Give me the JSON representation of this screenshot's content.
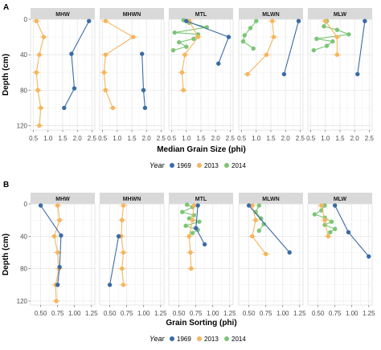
{
  "colors": {
    "1969": "#3b6ba5",
    "2013": "#f3b65e",
    "2014": "#7cc576"
  },
  "chart_data": [
    {
      "type": "scatter",
      "tag": "A",
      "xlabel": "Median Grain Size (phi)",
      "ylabel": "Depth (cm)",
      "xlim": [
        0.4,
        2.6
      ],
      "ylim": [
        0,
        125
      ],
      "xticks": [
        0.5,
        1.0,
        1.5,
        2.0,
        2.5
      ],
      "xtick_labels": [
        "0.5",
        "1.0",
        "1.5",
        "2.0",
        "2.5"
      ],
      "yticks": [
        0,
        40,
        80,
        120
      ],
      "ytick_labels": [
        "0",
        "40",
        "80",
        "120"
      ],
      "y_reversed": true,
      "legend": {
        "title": "Year",
        "position": "bottom",
        "entries": [
          "1969",
          "2013",
          "2014"
        ]
      },
      "facets": [
        {
          "label": "MHW",
          "series": [
            {
              "name": "1969",
              "points": [
                [
                  2.4,
                  2
                ],
                [
                  1.8,
                  39
                ],
                [
                  1.9,
                  78
                ],
                [
                  1.55,
                  100
                ]
              ]
            },
            {
              "name": "2013",
              "points": [
                [
                  0.6,
                  2
                ],
                [
                  0.85,
                  20
                ],
                [
                  0.7,
                  40
                ],
                [
                  0.6,
                  60
                ],
                [
                  0.65,
                  80
                ],
                [
                  0.75,
                  100
                ],
                [
                  0.7,
                  120
                ]
              ]
            }
          ]
        },
        {
          "label": "MHWN",
          "series": [
            {
              "name": "1969",
              "points": [
                [
                  1.85,
                  39
                ],
                [
                  1.9,
                  80
                ],
                [
                  1.95,
                  100
                ]
              ]
            },
            {
              "name": "2013",
              "points": [
                [
                  0.6,
                  2
                ],
                [
                  1.55,
                  20
                ],
                [
                  0.6,
                  40
                ],
                [
                  0.55,
                  60
                ],
                [
                  0.6,
                  80
                ],
                [
                  0.85,
                  100
                ]
              ]
            }
          ]
        },
        {
          "label": "MTL",
          "series": [
            {
              "name": "1969",
              "points": [
                [
                  1.0,
                  2
                ],
                [
                  2.45,
                  20
                ],
                [
                  2.1,
                  50
                ]
              ]
            },
            {
              "name": "2013",
              "points": [
                [
                  1.1,
                  2
                ],
                [
                  1.4,
                  20
                ],
                [
                  0.95,
                  40
                ],
                [
                  0.85,
                  60
                ],
                [
                  0.9,
                  80
                ]
              ]
            },
            {
              "name": "2014",
              "points": [
                [
                  0.9,
                  1
                ],
                [
                  1.1,
                  4
                ],
                [
                  1.7,
                  9
                ],
                [
                  0.6,
                  15
                ],
                [
                  1.4,
                  17
                ],
                [
                  1.25,
                  22
                ],
                [
                  0.75,
                  26
                ],
                [
                  1.0,
                  31
                ],
                [
                  0.55,
                  35
                ]
              ]
            }
          ]
        },
        {
          "label": "MLWN",
          "series": [
            {
              "name": "1969",
              "points": [
                [
                  2.45,
                  2
                ],
                [
                  1.95,
                  62
                ]
              ]
            },
            {
              "name": "2013",
              "points": [
                [
                  1.55,
                  2
                ],
                [
                  1.6,
                  20
                ],
                [
                  1.35,
                  40
                ],
                [
                  0.7,
                  62
                ]
              ]
            },
            {
              "name": "2014",
              "points": [
                [
                  1.0,
                  2
                ],
                [
                  0.8,
                  10
                ],
                [
                  0.6,
                  18
                ],
                [
                  0.55,
                  25
                ],
                [
                  0.9,
                  33
                ]
              ]
            }
          ]
        },
        {
          "label": "MLW",
          "series": [
            {
              "name": "1969",
              "points": [
                [
                  2.35,
                  2
                ],
                [
                  2.1,
                  62
                ]
              ]
            },
            {
              "name": "2013",
              "points": [
                [
                  1.0,
                  2
                ],
                [
                  1.4,
                  20
                ],
                [
                  1.4,
                  40
                ]
              ]
            },
            {
              "name": "2014",
              "points": [
                [
                  1.05,
                  2
                ],
                [
                  0.95,
                  8
                ],
                [
                  1.4,
                  12
                ],
                [
                  1.8,
                  17
                ],
                [
                  0.7,
                  22
                ],
                [
                  1.25,
                  25
                ],
                [
                  1.05,
                  30
                ],
                [
                  0.6,
                  35
                ]
              ]
            }
          ]
        }
      ]
    },
    {
      "type": "scatter",
      "tag": "B",
      "xlabel": "Grain Sorting (phi)",
      "ylabel": "Depth (cm)",
      "xlim": [
        0.35,
        1.3
      ],
      "ylim": [
        0,
        125
      ],
      "xticks": [
        0.5,
        0.75,
        1.0,
        1.25
      ],
      "xtick_labels": [
        "0.50",
        "0.75",
        "1.00",
        "1.25"
      ],
      "yticks": [
        0,
        40,
        80,
        120
      ],
      "ytick_labels": [
        "0",
        "40",
        "80",
        "120"
      ],
      "y_reversed": true,
      "legend": {
        "title": "Year",
        "position": "bottom",
        "entries": [
          "1969",
          "2013",
          "2014"
        ]
      },
      "facets": [
        {
          "label": "MHW",
          "series": [
            {
              "name": "1969",
              "points": [
                [
                  0.5,
                  2
                ],
                [
                  0.8,
                  39
                ],
                [
                  0.78,
                  78
                ],
                [
                  0.75,
                  100
                ]
              ]
            },
            {
              "name": "2013",
              "points": [
                [
                  0.75,
                  2
                ],
                [
                  0.78,
                  20
                ],
                [
                  0.7,
                  40
                ],
                [
                  0.75,
                  60
                ],
                [
                  0.77,
                  80
                ],
                [
                  0.72,
                  100
                ],
                [
                  0.73,
                  120
                ]
              ]
            }
          ]
        },
        {
          "label": "MHWN",
          "series": [
            {
              "name": "1969",
              "points": [
                [
                  0.63,
                  40
                ],
                [
                  0.5,
                  100
                ]
              ]
            },
            {
              "name": "2013",
              "points": [
                [
                  0.7,
                  2
                ],
                [
                  0.68,
                  20
                ],
                [
                  0.67,
                  40
                ],
                [
                  0.7,
                  60
                ],
                [
                  0.68,
                  80
                ],
                [
                  0.7,
                  100
                ]
              ]
            }
          ]
        },
        {
          "label": "MTL",
          "series": [
            {
              "name": "1969",
              "points": [
                [
                  0.78,
                  2
                ],
                [
                  0.75,
                  30
                ],
                [
                  0.88,
                  50
                ]
              ]
            },
            {
              "name": "2013",
              "points": [
                [
                  0.72,
                  2
                ],
                [
                  0.7,
                  20
                ],
                [
                  0.65,
                  40
                ],
                [
                  0.67,
                  60
                ],
                [
                  0.68,
                  80
                ]
              ]
            },
            {
              "name": "2014",
              "points": [
                [
                  0.62,
                  1
                ],
                [
                  0.7,
                  4
                ],
                [
                  0.55,
                  10
                ],
                [
                  0.72,
                  14
                ],
                [
                  0.65,
                  18
                ],
                [
                  0.8,
                  22
                ],
                [
                  0.6,
                  27
                ],
                [
                  0.78,
                  32
                ],
                [
                  0.7,
                  36
                ]
              ]
            }
          ]
        },
        {
          "label": "MLWN",
          "series": [
            {
              "name": "1969",
              "points": [
                [
                  0.5,
                  2
                ],
                [
                  1.1,
                  60
                ]
              ]
            },
            {
              "name": "2013",
              "points": [
                [
                  0.55,
                  2
                ],
                [
                  0.6,
                  20
                ],
                [
                  0.55,
                  40
                ],
                [
                  0.75,
                  62
                ]
              ]
            },
            {
              "name": "2014",
              "points": [
                [
                  0.65,
                  2
                ],
                [
                  0.6,
                  10
                ],
                [
                  0.68,
                  18
                ],
                [
                  0.72,
                  25
                ],
                [
                  0.65,
                  33
                ]
              ]
            }
          ]
        },
        {
          "label": "MLW",
          "series": [
            {
              "name": "1969",
              "points": [
                [
                  0.75,
                  2
                ],
                [
                  0.95,
                  35
                ],
                [
                  1.25,
                  65
                ]
              ]
            },
            {
              "name": "2013",
              "points": [
                [
                  0.55,
                  2
                ],
                [
                  0.6,
                  20
                ],
                [
                  0.65,
                  40
                ]
              ]
            },
            {
              "name": "2014",
              "points": [
                [
                  0.6,
                  2
                ],
                [
                  0.55,
                  8
                ],
                [
                  0.45,
                  13
                ],
                [
                  0.6,
                  17
                ],
                [
                  0.7,
                  22
                ],
                [
                  0.6,
                  26
                ],
                [
                  0.75,
                  31
                ],
                [
                  0.68,
                  35
                ]
              ]
            }
          ]
        }
      ]
    }
  ]
}
